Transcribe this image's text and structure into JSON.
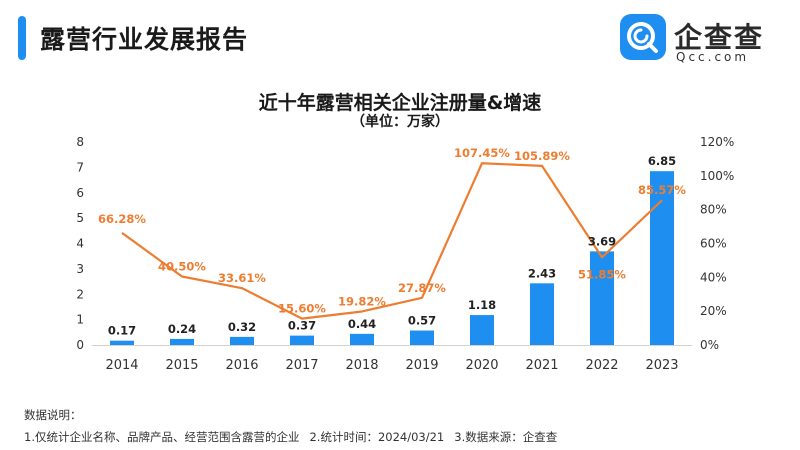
{
  "header": {
    "title": "露营行业发展报告",
    "accent_color": "#1f8ef1"
  },
  "logo": {
    "name": "企查查",
    "domain": "Qcc.com",
    "icon": "qcc-logo-icon",
    "color": "#1f8ef1"
  },
  "notes": {
    "heading": "数据说明：",
    "item1": "1.仅统计企业名称、品牌产品、经营范围含露营的企业",
    "item2": "2.统计时间：2024/03/21",
    "item3": "3.数据来源：企查查"
  },
  "chart_data": {
    "type": "bar",
    "title": "近十年露营相关企业注册量&增速",
    "subtitle": "（单位：万家）",
    "categories": [
      "2014",
      "2015",
      "2016",
      "2017",
      "2018",
      "2019",
      "2020",
      "2021",
      "2022",
      "2023"
    ],
    "series": [
      {
        "type": "bar",
        "axis": "left",
        "values": [
          0.17,
          0.24,
          0.32,
          0.37,
          0.44,
          0.57,
          1.18,
          2.43,
          3.69,
          6.85
        ],
        "labels": [
          "0.17",
          "0.24",
          "0.32",
          "0.37",
          "0.44",
          "0.57",
          "1.18",
          "2.43",
          "3.69",
          "6.85"
        ],
        "color": "#1f8ef1"
      },
      {
        "type": "line",
        "axis": "right",
        "values": [
          66.28,
          40.5,
          33.61,
          15.6,
          19.82,
          27.87,
          107.45,
          105.89,
          51.85,
          85.57
        ],
        "labels": [
          "66.28%",
          "40.50%",
          "33.61%",
          "15.60%",
          "19.82%",
          "27.87%",
          "107.45%",
          "105.89%",
          "51.85%",
          "85.57%"
        ],
        "color": "#ed7d31"
      }
    ],
    "y_left": {
      "min": 0,
      "max": 8,
      "ticks": [
        "0",
        "1",
        "2",
        "3",
        "4",
        "5",
        "6",
        "7",
        "8"
      ]
    },
    "y_right": {
      "min": 0,
      "max": 120,
      "ticks": [
        "0%",
        "20%",
        "40%",
        "60%",
        "80%",
        "100%",
        "120%"
      ]
    },
    "grid": false,
    "legend": "none"
  }
}
